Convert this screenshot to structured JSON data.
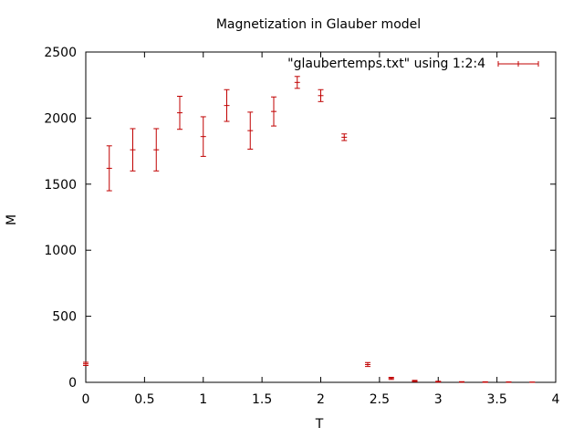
{
  "chart_data": {
    "type": "scatter",
    "title": "Magnetization in Glauber model",
    "xlabel": "T",
    "ylabel": "M",
    "xlim": [
      0,
      4
    ],
    "ylim": [
      0,
      2500
    ],
    "x_ticks": [
      0,
      0.5,
      1,
      1.5,
      2,
      2.5,
      3,
      3.5,
      4
    ],
    "x_tick_labels": [
      "0",
      "0.5",
      "1",
      "1.5",
      "2",
      "2.5",
      "3",
      "3.5",
      "4"
    ],
    "y_ticks": [
      0,
      500,
      1000,
      1500,
      2000,
      2500
    ],
    "y_tick_labels": [
      "0",
      "500",
      "1000",
      "1500",
      "2000",
      "2500"
    ],
    "grid": false,
    "legend_position": "top-right",
    "colors": {
      "series": "#c00000",
      "axis": "#000000"
    },
    "series": [
      {
        "name": "\"glaubertemps.txt\" using 1:2:4",
        "style": "yerrorbars",
        "points": [
          {
            "x": 0.0,
            "y": 140,
            "err": 12
          },
          {
            "x": 0.2,
            "y": 1620,
            "err": 170
          },
          {
            "x": 0.4,
            "y": 1760,
            "err": 160
          },
          {
            "x": 0.6,
            "y": 1760,
            "err": 160
          },
          {
            "x": 0.8,
            "y": 2040,
            "err": 125
          },
          {
            "x": 1.0,
            "y": 1860,
            "err": 150
          },
          {
            "x": 1.2,
            "y": 2095,
            "err": 120
          },
          {
            "x": 1.4,
            "y": 1905,
            "err": 140
          },
          {
            "x": 1.6,
            "y": 2050,
            "err": 110
          },
          {
            "x": 1.8,
            "y": 2270,
            "err": 45
          },
          {
            "x": 2.0,
            "y": 2170,
            "err": 45
          },
          {
            "x": 2.2,
            "y": 1855,
            "err": 25
          },
          {
            "x": 2.4,
            "y": 135,
            "err": 15
          },
          {
            "x": 2.6,
            "y": 30,
            "err": 8
          },
          {
            "x": 2.8,
            "y": 10,
            "err": 5
          },
          {
            "x": 3.0,
            "y": 5,
            "err": 3
          },
          {
            "x": 3.2,
            "y": 3,
            "err": 2
          },
          {
            "x": 3.4,
            "y": 2,
            "err": 2
          },
          {
            "x": 3.6,
            "y": 2,
            "err": 1
          },
          {
            "x": 3.8,
            "y": 1,
            "err": 1
          }
        ]
      }
    ]
  }
}
